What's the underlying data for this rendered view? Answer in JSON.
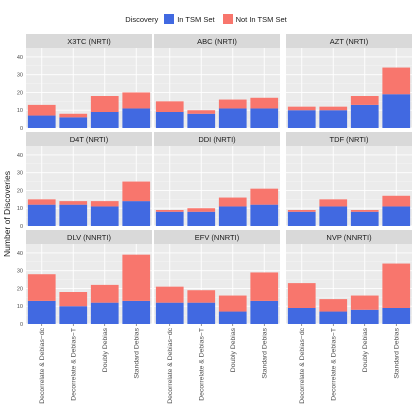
{
  "chart_data": {
    "type": "bar",
    "stacked": true,
    "facets": "3x3 grid",
    "ylabel": "Number of Discoveries",
    "xlabel": "",
    "ylim": [
      0,
      45
    ],
    "yticks": [
      0,
      10,
      20,
      30,
      40
    ],
    "grid": true,
    "legend": {
      "title": "Discovery",
      "position": "top",
      "entries": [
        {
          "name": "In TSM Set",
          "color": "#4169e1"
        },
        {
          "name": "Not In TSM Set",
          "color": "#f8766d"
        }
      ]
    },
    "categories": [
      "Decorrelate & Debias−dc",
      "Decorrelate & Debias−T",
      "Doubly Debias",
      "Standard Debias"
    ],
    "panels": [
      {
        "title": "X3TC (NRTI)",
        "in_tsm": [
          7,
          6,
          9,
          11
        ],
        "not_in_tsm": [
          6,
          2,
          9,
          9
        ]
      },
      {
        "title": "ABC (NRTI)",
        "in_tsm": [
          9,
          8,
          11,
          11
        ],
        "not_in_tsm": [
          6,
          2,
          5,
          6
        ]
      },
      {
        "title": "AZT (NRTI)",
        "in_tsm": [
          10,
          10,
          13,
          19
        ],
        "not_in_tsm": [
          2,
          2,
          5,
          15
        ]
      },
      {
        "title": "D4T (NRTI)",
        "in_tsm": [
          12,
          12,
          11,
          14
        ],
        "not_in_tsm": [
          3,
          2,
          3,
          11
        ]
      },
      {
        "title": "DDI (NRTI)",
        "in_tsm": [
          8,
          8,
          11,
          12
        ],
        "not_in_tsm": [
          1,
          2,
          5,
          9
        ]
      },
      {
        "title": "TDF (NRTI)",
        "in_tsm": [
          8,
          11,
          8,
          11
        ],
        "not_in_tsm": [
          1,
          4,
          1,
          6
        ]
      },
      {
        "title": "DLV (NNRTI)",
        "in_tsm": [
          13,
          10,
          12,
          13
        ],
        "not_in_tsm": [
          15,
          8,
          10,
          26
        ]
      },
      {
        "title": "EFV (NNRTI)",
        "in_tsm": [
          12,
          12,
          7,
          13
        ],
        "not_in_tsm": [
          9,
          7,
          9,
          16
        ]
      },
      {
        "title": "NVP (NNRTI)",
        "in_tsm": [
          9,
          7,
          8,
          9
        ],
        "not_in_tsm": [
          14,
          7,
          8,
          25
        ]
      }
    ]
  }
}
